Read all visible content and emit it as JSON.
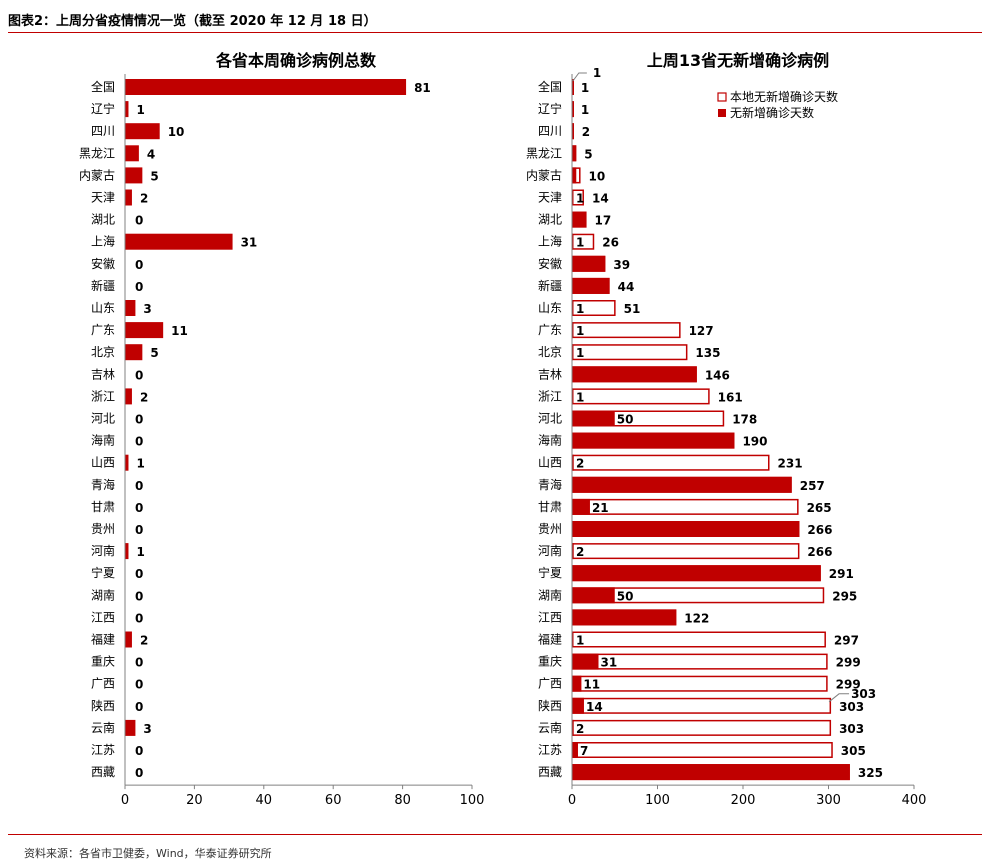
{
  "figure": {
    "title": "图表2：上周分省疫情情况一览（截至 2020 年 12 月 18 日）",
    "source": "资料来源：各省市卫健委，Wind，华泰证券研究所"
  },
  "colors": {
    "bar": "#c00000",
    "rule": "#c00000",
    "axis": "#808080"
  },
  "chart_data": [
    {
      "type": "bar",
      "orientation": "horizontal",
      "title": "各省本周确诊病例总数",
      "categories": [
        "全国",
        "辽宁",
        "四川",
        "黑龙江",
        "内蒙古",
        "天津",
        "湖北",
        "上海",
        "安徽",
        "新疆",
        "山东",
        "广东",
        "北京",
        "吉林",
        "浙江",
        "河北",
        "海南",
        "山西",
        "青海",
        "甘肃",
        "贵州",
        "河南",
        "宁夏",
        "湖南",
        "江西",
        "福建",
        "重庆",
        "广西",
        "陕西",
        "云南",
        "江苏",
        "西藏"
      ],
      "values": [
        81,
        1,
        10,
        4,
        5,
        2,
        0,
        31,
        0,
        0,
        3,
        11,
        5,
        0,
        2,
        0,
        0,
        1,
        0,
        0,
        0,
        1,
        0,
        0,
        0,
        2,
        0,
        0,
        0,
        3,
        0,
        0
      ],
      "xlim": [
        0,
        100
      ],
      "xticks": [
        0,
        20,
        40,
        60,
        80,
        100
      ],
      "xlabel": "",
      "ylabel": ""
    },
    {
      "type": "bar",
      "orientation": "horizontal",
      "title": "上周13省无新增确诊病例",
      "categories": [
        "全国",
        "辽宁",
        "四川",
        "黑龙江",
        "内蒙古",
        "天津",
        "湖北",
        "上海",
        "安徽",
        "新疆",
        "山东",
        "广东",
        "北京",
        "吉林",
        "浙江",
        "河北",
        "海南",
        "山西",
        "青海",
        "甘肃",
        "贵州",
        "河南",
        "宁夏",
        "湖南",
        "江西",
        "福建",
        "重庆",
        "广西",
        "陕西",
        "云南",
        "江苏",
        "西藏"
      ],
      "series": [
        {
          "name": "本地无新增确诊天数",
          "style": "outline",
          "values": [
            1,
            1,
            2,
            5,
            10,
            14,
            17,
            26,
            39,
            44,
            51,
            127,
            135,
            146,
            161,
            178,
            190,
            231,
            257,
            265,
            266,
            266,
            291,
            295,
            122,
            297,
            299,
            299,
            303,
            303,
            305,
            325
          ]
        },
        {
          "name": "无新增确诊天数",
          "style": "filled",
          "values": [
            1,
            1,
            2,
            5,
            5,
            1,
            17,
            1,
            39,
            44,
            1,
            1,
            1,
            146,
            1,
            50,
            190,
            2,
            257,
            21,
            266,
            2,
            291,
            50,
            122,
            1,
            31,
            11,
            14,
            2,
            7,
            325
          ]
        }
      ],
      "data_labels": {
        "total": [
          "1",
          "1",
          "2",
          "5",
          "10",
          "14",
          "17",
          "26",
          "39",
          "44",
          "51",
          "127",
          "135",
          "146",
          "161",
          "178",
          "190",
          "231",
          "257",
          "265",
          "266",
          "266",
          "291",
          "295",
          "122",
          "297",
          "299",
          "299",
          "303",
          "303",
          "305",
          "325"
        ],
        "inner": [
          "",
          "",
          "",
          "",
          "",
          "1",
          "",
          "1",
          "",
          "",
          "1",
          "1",
          "1",
          "",
          "1",
          "50",
          "",
          "2",
          "",
          "21",
          "",
          "2",
          "",
          "50",
          "",
          "1",
          "31",
          "11",
          "14",
          "2",
          "7",
          ""
        ],
        "callouts": [
          "1",
          "303"
        ]
      },
      "legend": {
        "position": "top-right",
        "entries": [
          "本地无新增确诊天数",
          "无新增确诊天数"
        ]
      },
      "xlim": [
        0,
        400
      ],
      "xticks": [
        0,
        100,
        200,
        300,
        400
      ],
      "xlabel": "",
      "ylabel": ""
    }
  ]
}
